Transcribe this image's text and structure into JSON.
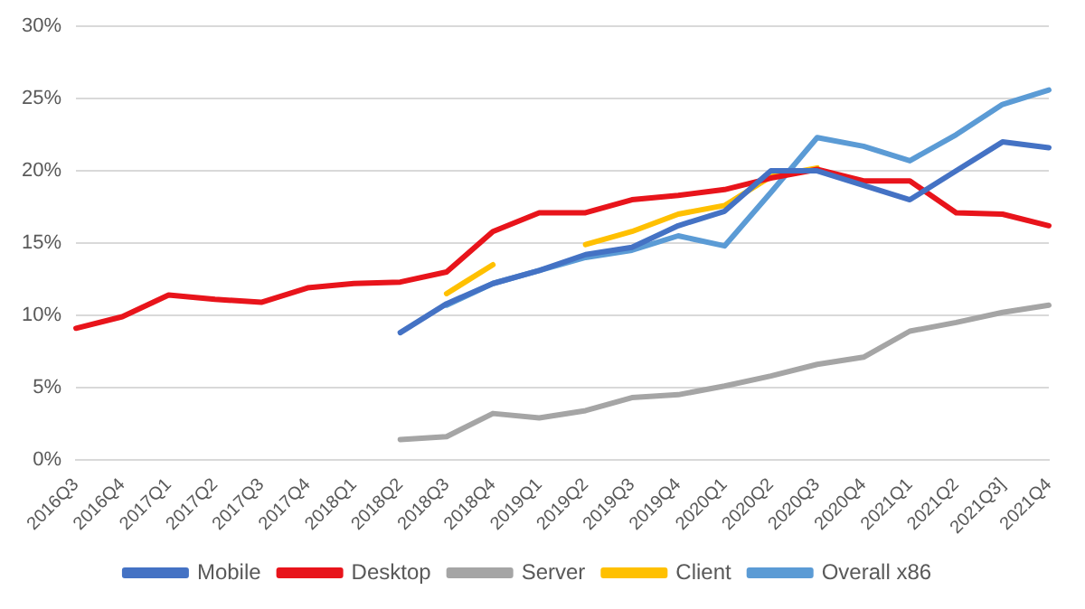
{
  "chart_data": {
    "type": "line",
    "categories": [
      "2016Q3",
      "2016Q4",
      "2017Q1",
      "2017Q2",
      "2017Q3",
      "2017Q4",
      "2018Q1",
      "2018Q2",
      "2018Q3",
      "2018Q4",
      "2019Q1",
      "2019Q2",
      "2019Q3",
      "2019Q4",
      "2020Q1",
      "2020Q2",
      "2020Q3",
      "2020Q4",
      "2021Q1",
      "2021Q2",
      "2021Q3]",
      "2021Q4"
    ],
    "series": [
      {
        "name": "Mobile",
        "color": "#4472c4",
        "values": [
          null,
          null,
          null,
          null,
          null,
          null,
          null,
          8.8,
          10.8,
          12.2,
          13.1,
          14.2,
          14.7,
          16.2,
          17.2,
          20.0,
          20.0,
          19.0,
          18.0,
          20.0,
          22.0,
          21.6
        ]
      },
      {
        "name": "Desktop",
        "color": "#e8141b",
        "values": [
          9.1,
          9.9,
          11.4,
          11.1,
          10.9,
          11.9,
          12.2,
          12.3,
          13.0,
          15.8,
          17.1,
          17.1,
          18.0,
          18.3,
          18.7,
          19.5,
          20.1,
          19.3,
          19.3,
          17.1,
          17.0,
          16.2
        ]
      },
      {
        "name": "Server",
        "color": "#a5a5a5",
        "values": [
          null,
          null,
          null,
          null,
          null,
          null,
          null,
          1.4,
          1.6,
          3.2,
          2.9,
          3.4,
          4.3,
          4.5,
          5.1,
          5.8,
          6.6,
          7.1,
          8.9,
          9.5,
          10.2,
          10.7
        ]
      },
      {
        "name": "Client",
        "color": "#ffc000",
        "values": [
          null,
          null,
          null,
          null,
          null,
          null,
          null,
          null,
          11.5,
          13.5,
          null,
          14.9,
          15.8,
          17.0,
          17.6,
          19.6,
          20.2,
          null,
          null,
          null,
          null,
          null
        ]
      },
      {
        "name": "Overall x86",
        "color": "#5b9bd5",
        "values": [
          null,
          null,
          null,
          null,
          null,
          null,
          null,
          null,
          10.7,
          12.2,
          13.1,
          14.0,
          14.5,
          15.5,
          14.8,
          18.5,
          22.3,
          21.7,
          20.7,
          22.5,
          24.6,
          25.6
        ]
      }
    ],
    "ylim": [
      0,
      30
    ],
    "yticks": [
      {
        "value": 0,
        "label": "0%"
      },
      {
        "value": 5,
        "label": "5%"
      },
      {
        "value": 10,
        "label": "10%"
      },
      {
        "value": 15,
        "label": "15%"
      },
      {
        "value": 20,
        "label": "20%"
      },
      {
        "value": 25,
        "label": "25%"
      },
      {
        "value": 30,
        "label": "30%"
      }
    ],
    "grid": "y",
    "legend": "bottom",
    "marker": "none",
    "line_style": "solid"
  }
}
